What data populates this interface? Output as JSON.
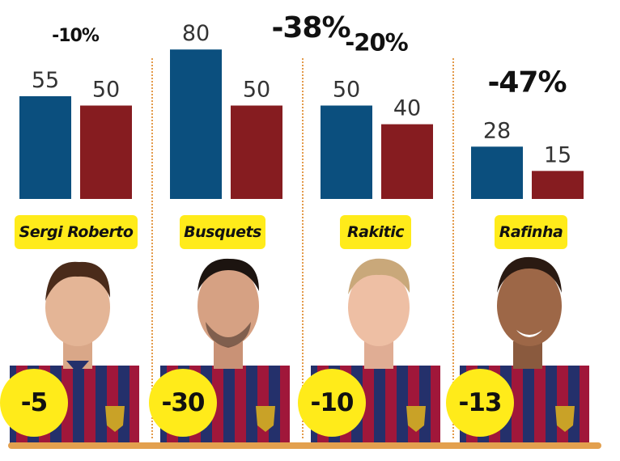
{
  "chart_data": {
    "type": "bar",
    "categories": [
      "Sergi Roberto",
      "Busquets",
      "Rakitic",
      "Rafinha"
    ],
    "series": [
      {
        "values": [
          55,
          80,
          50,
          28
        ]
      },
      {
        "values": [
          50,
          50,
          40,
          15
        ]
      }
    ],
    "value_labels": [
      [
        "55",
        "50"
      ],
      [
        "80",
        "50"
      ],
      [
        "50",
        "40"
      ],
      [
        "28",
        "15"
      ]
    ],
    "percent_changes": [
      "-10%",
      "-38%",
      "-20%",
      "-47%"
    ],
    "differences": [
      "-5",
      "-30",
      "-10",
      "-13"
    ],
    "colors": {
      "series_1": "#0b4f7e",
      "series_2": "#861c20",
      "highlight": "#ffeb1a",
      "accent": "#e3a04e"
    }
  }
}
